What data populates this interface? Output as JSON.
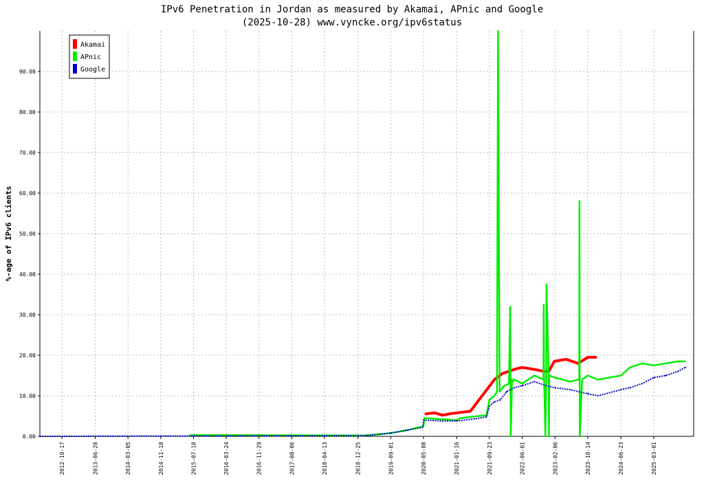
{
  "chart_data": {
    "type": "line",
    "title": "IPv6 Penetration in Jordan as measured by Akamai, APnic and Google",
    "subtitle": "(2025-10-28) www.vyncke.org/ipv6status",
    "ylabel": "%-age of IPv6 clients",
    "xlabel": "",
    "ylim": [
      0,
      100
    ],
    "yticks": [
      0,
      10,
      20,
      30,
      40,
      50,
      60,
      70,
      80,
      90
    ],
    "ytick_labels": [
      "0.00",
      "10.00",
      "20.00",
      "30.00",
      "40.00",
      "50.00",
      "60.00",
      "70.00",
      "80.00",
      "90.00"
    ],
    "xlim": [
      "2012-05-01",
      "2025-12-31"
    ],
    "xticks": [
      "2012-10-17",
      "2013-06-28",
      "2014-03-05",
      "2014-11-10",
      "2015-07-18",
      "2016-03-24",
      "2016-11-29",
      "2017-08-06",
      "2018-04-13",
      "2018-12-25",
      "2019-09-01",
      "2020-05-08",
      "2021-01-16",
      "2021-09-23",
      "2022-06-01",
      "2023-02-06",
      "2023-10-14",
      "2024-06-23",
      "2025-03-01"
    ],
    "grid": true,
    "legend_position": "top-left",
    "series": [
      {
        "name": "Akamai",
        "color": "#ff0000",
        "x": [
          "2020-05-20",
          "2020-08-01",
          "2020-10-01",
          "2020-12-01",
          "2021-01-20",
          "2021-05-01",
          "2021-11-01",
          "2022-01-01",
          "2022-04-01",
          "2022-06-01",
          "2022-09-01",
          "2022-11-15",
          "2022-12-20",
          "2023-02-01",
          "2023-05-01",
          "2023-08-01",
          "2023-10-14",
          "2023-12-20"
        ],
        "values": [
          5.5,
          5.8,
          5.2,
          5.6,
          5.8,
          6.2,
          14.0,
          15.5,
          16.5,
          17.0,
          16.5,
          16.0,
          16.0,
          18.5,
          19.0,
          18.0,
          19.5,
          19.5
        ]
      },
      {
        "name": "APnic",
        "color": "#00ee00",
        "x": [
          "2015-06-20",
          "2015-08-20",
          "2019-03-01",
          "2019-09-01",
          "2020-01-01",
          "2020-05-08",
          "2020-05-15",
          "2020-10-01",
          "2021-01-01",
          "2021-01-16",
          "2021-02-15",
          "2021-05-01",
          "2021-09-01",
          "2021-09-23",
          "2021-11-01",
          "2021-11-20",
          "2021-11-28",
          "2021-12-10",
          "2022-01-15",
          "2022-02-20",
          "2022-03-01",
          "2022-03-05",
          "2022-03-15",
          "2022-03-20",
          "2022-04-01",
          "2022-06-01",
          "2022-09-01",
          "2022-11-10",
          "2022-11-12",
          "2022-11-14",
          "2022-11-25",
          "2022-12-01",
          "2022-12-03",
          "2022-12-20",
          "2022-12-22",
          "2022-12-24",
          "2023-02-06",
          "2023-06-01",
          "2023-08-10",
          "2023-08-12",
          "2023-08-14",
          "2023-09-01",
          "2023-10-14",
          "2024-01-01",
          "2024-06-23",
          "2024-09-01",
          "2024-12-01",
          "2025-03-01",
          "2025-06-01",
          "2025-09-01",
          "2025-10-28"
        ],
        "values": [
          0.3,
          0.3,
          0.2,
          0.8,
          1.5,
          2.5,
          4.5,
          4.2,
          4.0,
          4.0,
          4.5,
          4.8,
          5.2,
          9.0,
          10.0,
          11.0,
          100,
          11.0,
          12.5,
          13.0,
          32.0,
          0.0,
          14.0,
          13.5,
          14.0,
          13.0,
          15.0,
          14.0,
          32.5,
          15.0,
          0.0,
          14.0,
          37.5,
          15.0,
          0.0,
          15.0,
          14.5,
          13.5,
          14.0,
          58.0,
          0.0,
          14.0,
          15.0,
          14.0,
          15.0,
          17.0,
          18.0,
          17.5,
          18.0,
          18.5,
          18.5
        ]
      },
      {
        "name": "Google",
        "color": "#0000cc",
        "x": [
          "2012-05-01",
          "2019-03-01",
          "2019-09-01",
          "2020-01-01",
          "2020-05-01",
          "2020-05-10",
          "2020-10-01",
          "2021-01-16",
          "2021-06-01",
          "2021-09-01",
          "2021-09-23",
          "2021-11-01",
          "2021-12-15",
          "2022-02-01",
          "2022-04-01",
          "2022-06-01",
          "2022-09-01",
          "2022-12-01",
          "2023-02-06",
          "2023-06-01",
          "2023-10-14",
          "2024-01-01",
          "2024-06-23",
          "2024-09-01",
          "2024-12-01",
          "2025-03-01",
          "2025-06-01",
          "2025-09-01",
          "2025-10-28"
        ],
        "values": [
          0.0,
          0.2,
          0.8,
          1.5,
          2.2,
          4.0,
          3.8,
          3.8,
          4.3,
          4.8,
          7.5,
          8.5,
          9.0,
          11.0,
          12.0,
          12.5,
          13.5,
          12.5,
          12.0,
          11.5,
          10.5,
          10.0,
          11.5,
          12.0,
          13.0,
          14.5,
          15.0,
          16.0,
          17.0
        ]
      }
    ]
  }
}
